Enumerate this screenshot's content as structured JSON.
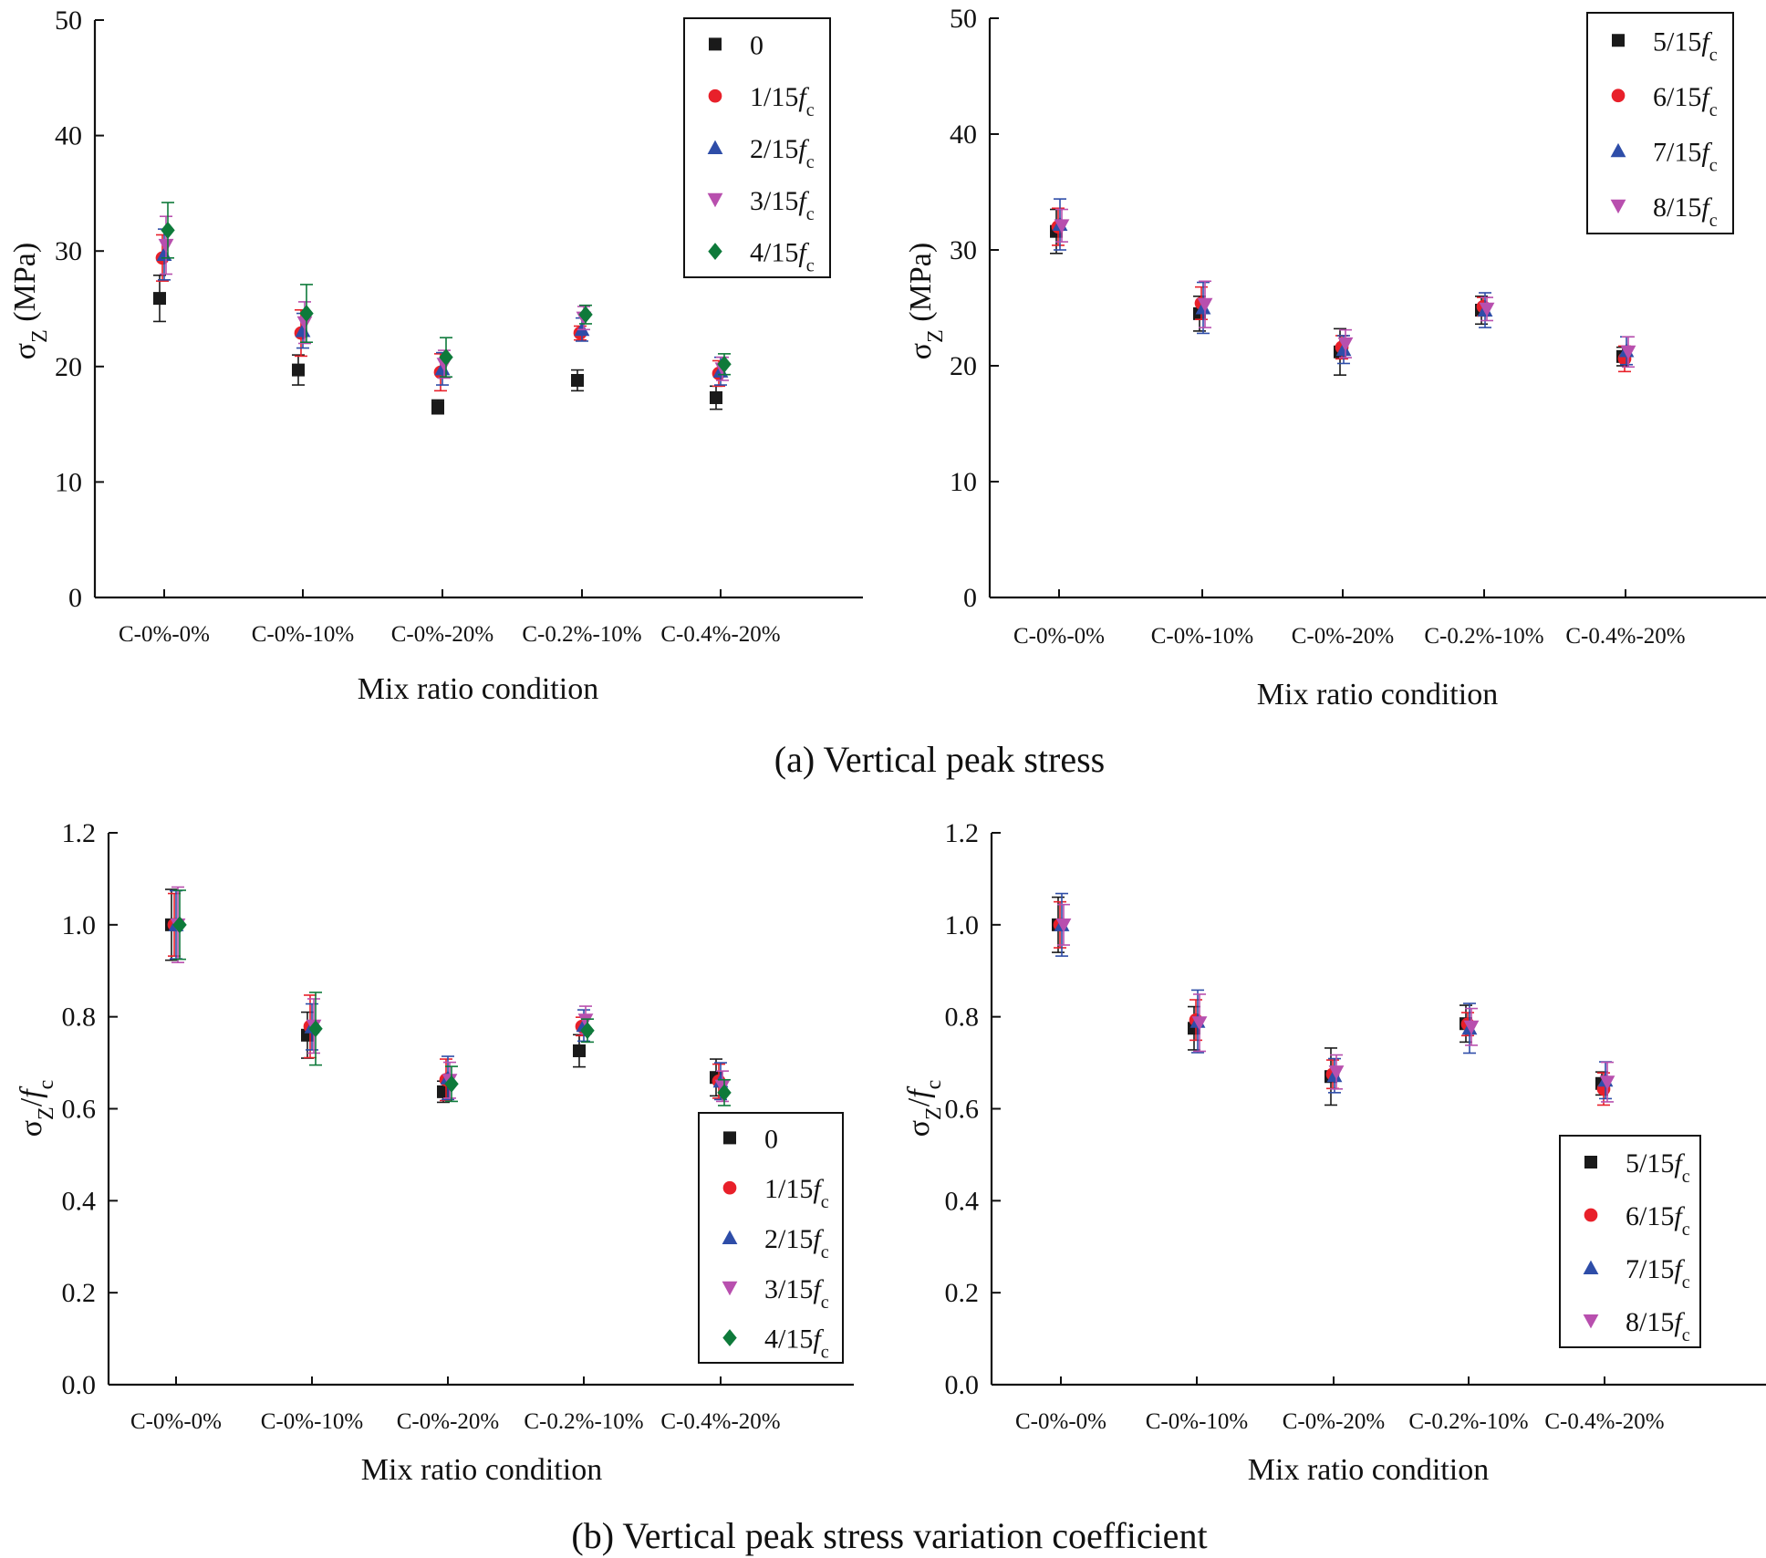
{
  "figure": {
    "caption_a": "(a) Vertical peak stress",
    "caption_b": "(b) Vertical peak stress variation coefficient"
  },
  "colors": {
    "series_0": "#1a1a1a",
    "series_1": "#e8202a",
    "series_2": "#2e4da8",
    "series_3": "#b84fae",
    "series_4": "#0e7a3a",
    "series_5": "#1a1a1a",
    "series_6": "#e8202a",
    "series_7": "#2e4da8",
    "series_8": "#b84fae"
  },
  "chart_data": [
    {
      "id": "a-left",
      "type": "scatter",
      "title": "",
      "xlabel": "Mix ratio condition",
      "ylabel_main": "σ",
      "ylabel_sub": "Z",
      "ylabel_rest": " (MPa)",
      "categories": [
        "C-0%-0%",
        "C-0%-10%",
        "C-0%-20%",
        "C-0.2%-10%",
        "C-0.4%-20%"
      ],
      "ylim": [
        0,
        50
      ],
      "yticks": [
        0,
        10,
        20,
        30,
        40,
        50
      ],
      "ytick_labels": [
        "0",
        "10",
        "20",
        "30",
        "40",
        "50"
      ],
      "legend_position": "top-right",
      "series": [
        {
          "name": "0",
          "marker": "square",
          "color_key": "series_0",
          "values": [
            25.9,
            19.7,
            16.5,
            18.8,
            17.3
          ],
          "errors": [
            2.0,
            1.3,
            0.6,
            0.9,
            1.0
          ]
        },
        {
          "name": "1/15",
          "sub": "c",
          "marker": "circle",
          "color_key": "series_1",
          "values": [
            29.4,
            22.9,
            19.5,
            22.9,
            19.4
          ],
          "errors": [
            2.0,
            2.0,
            1.6,
            0.6,
            1.1
          ]
        },
        {
          "name": "2/15",
          "sub": "c",
          "marker": "triangle-up",
          "color_key": "series_2",
          "values": [
            29.7,
            23.1,
            19.8,
            23.2,
            19.6
          ],
          "errors": [
            2.2,
            1.5,
            1.4,
            1.0,
            1.2
          ]
        },
        {
          "name": "3/15",
          "sub": "c",
          "marker": "triangle-down",
          "color_key": "series_3",
          "values": [
            30.5,
            23.8,
            20.2,
            24.2,
            19.8
          ],
          "errors": [
            2.5,
            1.8,
            1.2,
            1.0,
            1.0
          ]
        },
        {
          "name": "4/15",
          "sub": "c",
          "marker": "diamond",
          "color_key": "series_4",
          "values": [
            31.8,
            24.6,
            20.8,
            24.5,
            20.2
          ],
          "errors": [
            2.4,
            2.5,
            1.7,
            0.8,
            0.9
          ]
        }
      ]
    },
    {
      "id": "a-right",
      "type": "scatter",
      "title": "",
      "xlabel": "Mix ratio condition",
      "ylabel_main": "σ",
      "ylabel_sub": "Z",
      "ylabel_rest": " (MPa)",
      "categories": [
        "C-0%-0%",
        "C-0%-10%",
        "C-0%-20%",
        "C-0.2%-10%",
        "C-0.4%-20%"
      ],
      "ylim": [
        0,
        50
      ],
      "yticks": [
        0,
        10,
        20,
        30,
        40,
        50
      ],
      "ytick_labels": [
        "0",
        "10",
        "20",
        "30",
        "40",
        "50"
      ],
      "legend_position": "top-right",
      "series": [
        {
          "name": "5/15",
          "sub": "c",
          "marker": "square",
          "color_key": "series_5",
          "values": [
            31.6,
            24.5,
            21.2,
            24.8,
            20.8
          ],
          "errors": [
            1.9,
            1.5,
            2.0,
            1.2,
            0.8
          ]
        },
        {
          "name": "6/15",
          "sub": "c",
          "marker": "circle",
          "color_key": "series_6",
          "values": [
            32.0,
            25.4,
            21.6,
            25.1,
            20.6
          ],
          "errors": [
            1.6,
            1.4,
            1.0,
            0.8,
            1.1
          ]
        },
        {
          "name": "7/15",
          "sub": "c",
          "marker": "triangle-up",
          "color_key": "series_7",
          "values": [
            32.2,
            25.0,
            21.4,
            24.8,
            21.3
          ],
          "errors": [
            2.2,
            2.2,
            1.2,
            1.5,
            1.2
          ]
        },
        {
          "name": "8/15",
          "sub": "c",
          "marker": "triangle-down",
          "color_key": "series_8",
          "values": [
            32.1,
            25.3,
            21.9,
            24.9,
            21.2
          ],
          "errors": [
            1.4,
            2.0,
            1.2,
            1.0,
            1.3
          ]
        }
      ]
    },
    {
      "id": "b-left",
      "type": "scatter",
      "title": "",
      "xlabel": "Mix ratio condition",
      "ylabel_main": "σ",
      "ylabel_sub": "Z",
      "ylabel_rest": "/f",
      "ylabel_sub2": "c",
      "categories": [
        "C-0%-0%",
        "C-0%-10%",
        "C-0%-20%",
        "C-0.2%-10%",
        "C-0.4%-20%"
      ],
      "ylim": [
        0,
        1.2
      ],
      "yticks": [
        0,
        0.2,
        0.4,
        0.6,
        0.8,
        1.0,
        1.2
      ],
      "ytick_labels": [
        "0.0",
        "0.2",
        "0.4",
        "0.6",
        "0.8",
        "1.0",
        "1.2"
      ],
      "legend_position": "bottom-right",
      "series": [
        {
          "name": "0",
          "marker": "square",
          "color_key": "series_0",
          "values": [
            1.0,
            0.76,
            0.637,
            0.726,
            0.668
          ],
          "errors": [
            0.077,
            0.05,
            0.023,
            0.035,
            0.04
          ]
        },
        {
          "name": "1/15",
          "sub": "c",
          "marker": "circle",
          "color_key": "series_1",
          "values": [
            1.0,
            0.779,
            0.663,
            0.779,
            0.66
          ],
          "errors": [
            0.068,
            0.068,
            0.045,
            0.02,
            0.037
          ]
        },
        {
          "name": "2/15",
          "sub": "c",
          "marker": "triangle-up",
          "color_key": "series_2",
          "values": [
            1.0,
            0.778,
            0.667,
            0.781,
            0.66
          ],
          "errors": [
            0.074,
            0.05,
            0.047,
            0.034,
            0.04
          ]
        },
        {
          "name": "3/15",
          "sub": "c",
          "marker": "triangle-down",
          "color_key": "series_3",
          "values": [
            1.0,
            0.78,
            0.662,
            0.793,
            0.649
          ],
          "errors": [
            0.082,
            0.059,
            0.039,
            0.03,
            0.033
          ]
        },
        {
          "name": "4/15",
          "sub": "c",
          "marker": "diamond",
          "color_key": "series_4",
          "values": [
            1.0,
            0.774,
            0.654,
            0.77,
            0.635
          ],
          "errors": [
            0.075,
            0.079,
            0.038,
            0.025,
            0.028
          ]
        }
      ]
    },
    {
      "id": "b-right",
      "type": "scatter",
      "title": "",
      "xlabel": "Mix ratio condition",
      "ylabel_main": "σ",
      "ylabel_sub": "Z",
      "ylabel_rest": "/f",
      "ylabel_sub2": "c",
      "categories": [
        "C-0%-0%",
        "C-0%-10%",
        "C-0%-20%",
        "C-0.2%-10%",
        "C-0.4%-20%"
      ],
      "ylim": [
        0,
        1.2
      ],
      "yticks": [
        0,
        0.2,
        0.4,
        0.6,
        0.8,
        1.0,
        1.2
      ],
      "ytick_labels": [
        "0.0",
        "0.2",
        "0.4",
        "0.6",
        "0.8",
        "1.0",
        "1.2"
      ],
      "legend_position": "bottom-right",
      "series": [
        {
          "name": "5/15",
          "sub": "c",
          "marker": "square",
          "color_key": "series_5",
          "values": [
            1.0,
            0.775,
            0.67,
            0.785,
            0.655
          ],
          "errors": [
            0.06,
            0.047,
            0.062,
            0.04,
            0.025
          ]
        },
        {
          "name": "6/15",
          "sub": "c",
          "marker": "circle",
          "color_key": "series_6",
          "values": [
            1.0,
            0.793,
            0.675,
            0.784,
            0.643
          ],
          "errors": [
            0.05,
            0.044,
            0.031,
            0.025,
            0.035
          ]
        },
        {
          "name": "7/15",
          "sub": "c",
          "marker": "triangle-up",
          "color_key": "series_7",
          "values": [
            1.0,
            0.79,
            0.672,
            0.775,
            0.662
          ],
          "errors": [
            0.068,
            0.068,
            0.037,
            0.054,
            0.04
          ]
        },
        {
          "name": "8/15",
          "sub": "c",
          "marker": "triangle-down",
          "color_key": "series_8",
          "values": [
            1.0,
            0.787,
            0.68,
            0.778,
            0.658
          ],
          "errors": [
            0.044,
            0.062,
            0.037,
            0.04,
            0.043
          ]
        }
      ]
    }
  ]
}
